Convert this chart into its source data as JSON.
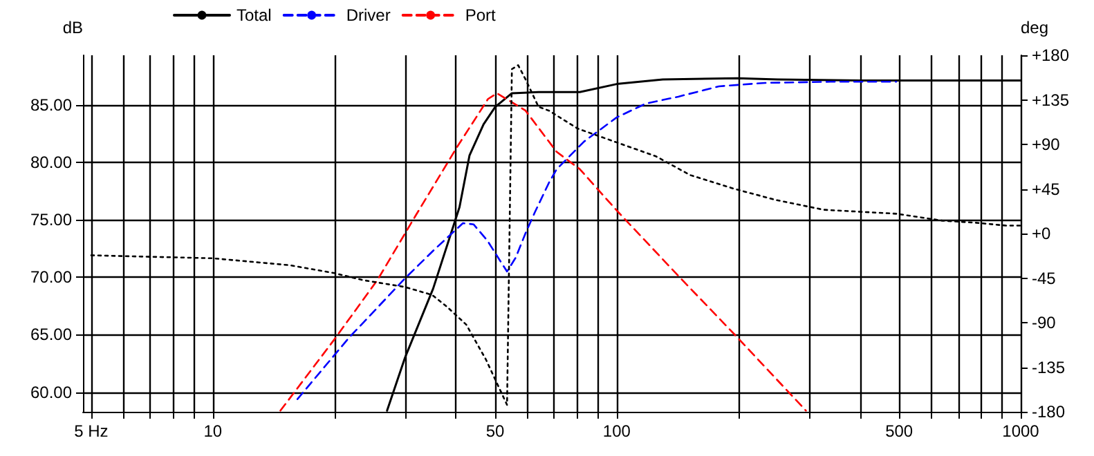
{
  "chart_data": {
    "type": "line",
    "xlabel": null,
    "ylabel": "dB",
    "y2label": "deg",
    "log": "x",
    "grid": true,
    "legend": "top left",
    "xlim": [
      4.77,
      1000
    ],
    "xticks": [
      {
        "value": 5,
        "label": "5 Hz"
      },
      {
        "value": 6,
        "label": null
      },
      {
        "value": 7,
        "label": null
      },
      {
        "value": 8,
        "label": null
      },
      {
        "value": 9,
        "label": null
      },
      10,
      {
        "value": 20,
        "label": null
      },
      {
        "value": 30,
        "label": null
      },
      {
        "value": 40,
        "label": null
      },
      50,
      {
        "value": 60,
        "label": null
      },
      {
        "value": 70,
        "label": null
      },
      {
        "value": 80,
        "label": null
      },
      {
        "value": 90,
        "label": null
      },
      100,
      {
        "value": 200,
        "label": null
      },
      {
        "value": 300,
        "label": null
      },
      {
        "value": 400,
        "label": null
      },
      500,
      {
        "value": 600,
        "label": null
      },
      {
        "value": 700,
        "label": null
      },
      {
        "value": 800,
        "label": null
      },
      {
        "value": 900,
        "label": null
      },
      1000
    ],
    "ylim": [
      58.3,
      89.3
    ],
    "yticks": [
      {
        "value": 60,
        "label": "60.00"
      },
      {
        "value": 65,
        "label": "65.00"
      },
      {
        "value": 70,
        "label": "70.00"
      },
      {
        "value": 75,
        "label": "75.00"
      },
      {
        "value": 80,
        "label": "80.00"
      },
      {
        "value": 85,
        "label": "85.00"
      }
    ],
    "y2lim": [
      -180,
      180
    ],
    "y2ticks": [
      -180,
      -135,
      -90,
      -45,
      {
        "value": 0,
        "label": "+0"
      },
      {
        "value": 45,
        "label": "+45"
      },
      {
        "value": 90,
        "label": "+90"
      },
      {
        "value": 135,
        "label": "+135"
      },
      {
        "value": 180,
        "label": "+180"
      }
    ],
    "series": [
      {
        "name": "Total",
        "color": "#000000",
        "line_style": "solid",
        "x": [
          27,
          29.9,
          35.1,
          40.8,
          43.2,
          46.8,
          50,
          55,
          64,
          81,
          100,
          130,
          199,
          250,
          400,
          700,
          1000
        ],
        "values": [
          58.4,
          63.0,
          69.0,
          76.1,
          80.6,
          83.3,
          84.8,
          86.0,
          86.1,
          86.1,
          86.8,
          87.2,
          87.3,
          87.2,
          87.1,
          87.1,
          87.1
        ]
      },
      {
        "name": "Driver",
        "color": "#0000ff",
        "line_style": "dashed",
        "x": [
          16.2,
          21.8,
          23.5,
          29.9,
          32.4,
          35.1,
          41.6,
          44.2,
          47.8,
          51.5,
          53.5,
          56.2,
          59.4,
          62.6,
          67.9,
          71,
          83,
          100,
          118,
          142,
          179,
          233,
          338,
          492
        ],
        "values": [
          59.4,
          64.8,
          66.0,
          69.9,
          71.1,
          72.3,
          74.7,
          74.6,
          73.2,
          71.4,
          70.5,
          71.7,
          73.8,
          75.6,
          78.2,
          79.4,
          81.8,
          83.9,
          85.1,
          85.7,
          86.6,
          86.9,
          87.0,
          87.0
        ]
      },
      {
        "name": "Port",
        "color": "#ff0000",
        "line_style": "dashed",
        "x": [
          14.7,
          20,
          25.6,
          31.7,
          40.2,
          48,
          50.5,
          59.4,
          71,
          81,
          100,
          144,
          196,
          294
        ],
        "values": [
          58.4,
          64.6,
          69.8,
          75.3,
          81.3,
          85.5,
          86.0,
          84.5,
          80.9,
          79.4,
          75.8,
          69.9,
          65.0,
          58.4
        ]
      },
      {
        "color": "#000000",
        "line_style": "dotted",
        "axis": "y2",
        "x": [
          5,
          10,
          15.5,
          20,
          23.5,
          29.9,
          34.9,
          38,
          42.4,
          47.4,
          53.5,
          55,
          57,
          59.4,
          64,
          68,
          80,
          100,
          125,
          152,
          196,
          247,
          325,
          492,
          640,
          770,
          920,
          1000
        ],
        "values": [
          -22,
          -25,
          -32,
          -40,
          -47,
          -54,
          -62,
          -74,
          -92,
          -127,
          -173,
          166,
          170,
          156,
          128,
          124,
          106,
          92,
          78,
          59,
          45,
          34,
          24,
          20,
          13,
          11,
          8,
          8
        ]
      }
    ]
  }
}
